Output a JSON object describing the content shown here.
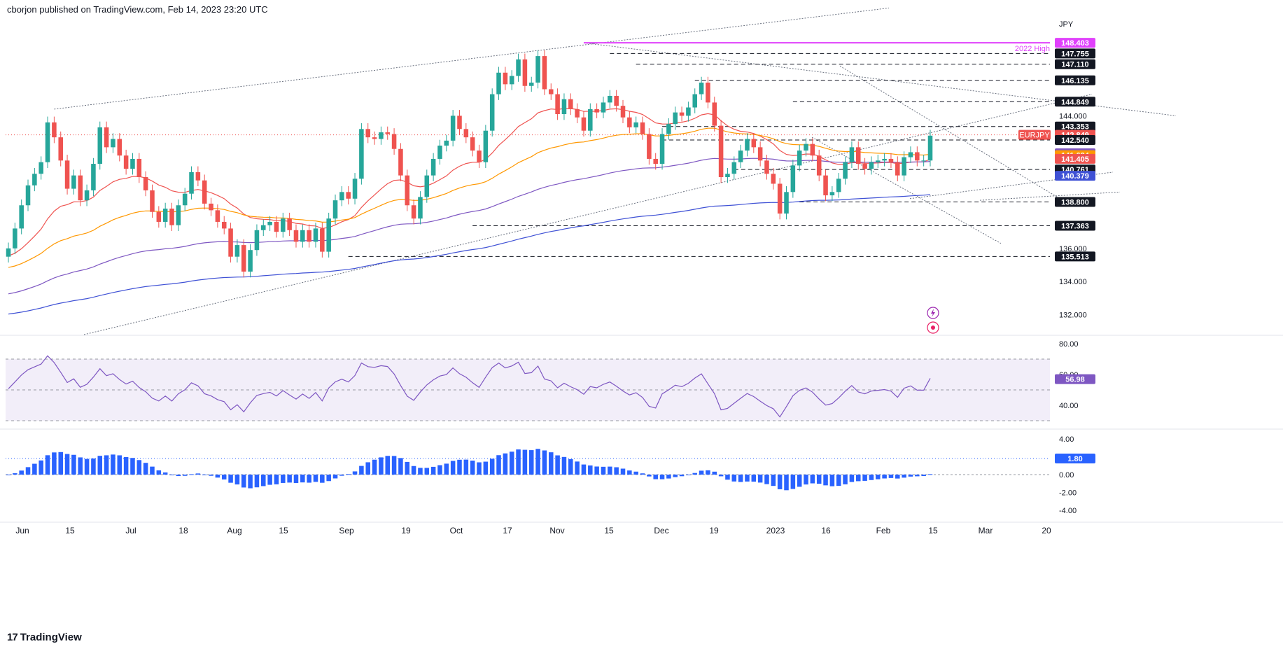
{
  "header": {
    "attribution": "cborjon published on TradingView.com, Feb 14, 2023 23:20 UTC"
  },
  "footer": {
    "brand": "TradingView",
    "brand_mark": "17"
  },
  "colors": {
    "up": "#26a69a",
    "down": "#ef5350",
    "ema_short": "#ef5350",
    "ema_mid": "#ff9800",
    "ema_long": "#7e57c2",
    "sma_200": "#3f51d5",
    "rsi": "#7e57c2",
    "macd": "#2962ff",
    "high_line": "#e040fb"
  },
  "icons": [
    "lightning-icon",
    "record-icon"
  ],
  "chart_data": [
    {
      "type": "candlestick",
      "symbol": "EURJPY",
      "currency": "JPY",
      "x_tick_labels": [
        "Jun",
        "15",
        "Jul",
        "18",
        "Aug",
        "15",
        "Sep",
        "19",
        "Oct",
        "17",
        "Nov",
        "15",
        "Dec",
        "19",
        "2023",
        "16",
        "Feb",
        "15",
        "Mar",
        "20"
      ],
      "y_tick_labels": [
        "132.000",
        "134.000",
        "136.000",
        "144.000"
      ],
      "ylim": [
        130.8,
        149.8
      ],
      "price_labels": [
        {
          "text": "148.403",
          "value": 148.403,
          "color": "#e040fb"
        },
        {
          "text": "147.755",
          "value": 147.755,
          "color": "#131722"
        },
        {
          "text": "147.110",
          "value": 147.11,
          "color": "#131722"
        },
        {
          "text": "146.135",
          "value": 146.135,
          "color": "#131722"
        },
        {
          "text": "144.849",
          "value": 144.849,
          "color": "#131722"
        },
        {
          "text": "143.353",
          "value": 143.353,
          "color": "#131722"
        },
        {
          "text": "142.849",
          "value": 142.849,
          "color": "#ef5350"
        },
        {
          "text": "142.540",
          "value": 142.54,
          "color": "#131722"
        },
        {
          "text": "141.736",
          "value": 141.736,
          "color": "#7e57c2"
        },
        {
          "text": "141.624",
          "value": 141.624,
          "color": "#ff9800"
        },
        {
          "text": "141.405",
          "value": 141.405,
          "color": "#ef5350"
        },
        {
          "text": "140.761",
          "value": 140.761,
          "color": "#131722"
        },
        {
          "text": "140.379",
          "value": 140.379,
          "color": "#3f51d5"
        },
        {
          "text": "138.800",
          "value": 138.8,
          "color": "#131722"
        },
        {
          "text": "137.363",
          "value": 137.363,
          "color": "#131722"
        },
        {
          "text": "135.513",
          "value": 135.513,
          "color": "#131722"
        }
      ],
      "symbol_label": "EURJPY",
      "annotation": "2022 High",
      "annotation_value": 148.403,
      "last_price": 142.849,
      "support_resistance": [
        147.755,
        147.11,
        146.135,
        144.849,
        143.353,
        142.54,
        140.761,
        138.8,
        137.363,
        135.513
      ],
      "close_series": [
        136.0,
        137.2,
        138.6,
        139.8,
        140.5,
        141.2,
        143.6,
        142.7,
        141.3,
        139.6,
        140.4,
        138.9,
        139.5,
        141.1,
        143.3,
        142.1,
        142.6,
        141.6,
        140.8,
        141.4,
        140.3,
        139.5,
        138.2,
        137.6,
        138.4,
        137.4,
        138.6,
        139.3,
        140.6,
        140.1,
        138.7,
        138.3,
        137.6,
        137.2,
        135.5,
        136.2,
        134.6,
        135.9,
        137.1,
        137.4,
        137.6,
        137.0,
        137.8,
        137.1,
        136.4,
        137.1,
        136.4,
        137.2,
        135.8,
        137.8,
        138.9,
        139.4,
        139.0,
        140.2,
        143.2,
        142.7,
        142.6,
        143.0,
        142.9,
        142.0,
        140.4,
        138.6,
        137.8,
        139.1,
        140.4,
        141.4,
        142.2,
        142.5,
        144.0,
        143.2,
        142.7,
        141.9,
        141.2,
        143.1,
        145.3,
        146.6,
        145.9,
        146.4,
        147.4,
        145.8,
        146.0,
        147.6,
        145.6,
        145.3,
        144.1,
        145.0,
        144.4,
        143.9,
        143.1,
        144.4,
        144.2,
        144.8,
        145.2,
        144.6,
        143.9,
        143.3,
        143.6,
        142.9,
        141.4,
        141.1,
        142.9,
        143.5,
        144.2,
        144.0,
        144.5,
        145.3,
        146.0,
        144.8,
        143.4,
        140.3,
        140.5,
        141.2,
        141.9,
        142.6,
        142.1,
        141.3,
        140.5,
        139.9,
        138.1,
        139.4,
        141.0,
        141.9,
        142.3,
        141.6,
        140.4,
        139.2,
        139.4,
        140.2,
        141.2,
        142.1,
        141.1,
        140.8,
        141.2,
        141.3,
        141.4,
        141.2,
        140.4,
        141.5,
        141.8,
        141.3,
        141.3,
        142.8
      ],
      "rsi": {
        "upper": 70,
        "lower": 30,
        "mid": 50,
        "ylim": [
          25,
          85
        ],
        "tick_labels": [
          "80.00",
          "60.00",
          "40.00"
        ],
        "last": 56.98,
        "last_label": "56.98"
      },
      "macd_hist": {
        "ylim": [
          -5.0,
          5.0
        ],
        "tick_labels": [
          "4.00",
          "2.00",
          "0.00",
          "-2.00",
          "-4.00"
        ],
        "last": 1.8,
        "last_label": "1.80"
      }
    }
  ]
}
